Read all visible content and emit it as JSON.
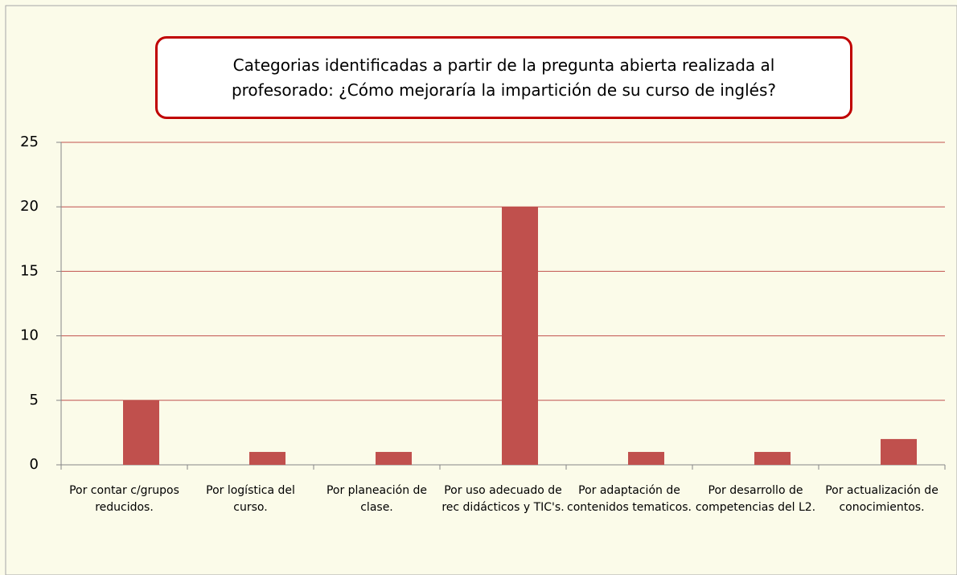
{
  "chart_data": {
    "type": "bar",
    "title": "Categorias identificadas a partir de la pregunta abierta realizada al profesorado: ¿Cómo mejoraría la impartición de su curso de inglés?",
    "categories": [
      "Por contar c/grupos reducidos.",
      "Por logística del curso.",
      "Por planeación de clase.",
      "Por uso adecuado de rec didácticos y TIC's.",
      "Por adaptación de contenidos tematicos.",
      "Por desarrollo de competencias del L2.",
      "Por actualización de conocimientos."
    ],
    "values": [
      5,
      1,
      1,
      20,
      1,
      1,
      2
    ],
    "color": "#c0504d",
    "ylim": [
      0,
      25
    ],
    "yticks": [
      0,
      5,
      10,
      15,
      20,
      25
    ],
    "grid": true,
    "grid_color": "#c0504d"
  }
}
